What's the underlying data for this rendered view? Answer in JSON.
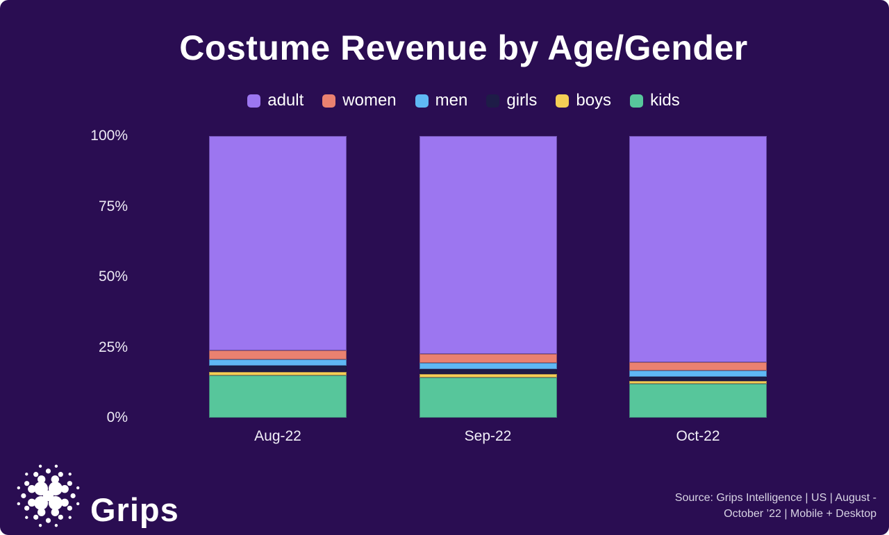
{
  "chart": {
    "title": "Costume Revenue by Age/Gender"
  },
  "chart_data": {
    "type": "bar",
    "stacked": true,
    "unit": "%",
    "title": "Costume Revenue by Age/Gender",
    "categories": [
      "Aug-22",
      "Sep-22",
      "Oct-22"
    ],
    "series": [
      {
        "name": "adult",
        "color": "#9C76F0",
        "values": [
          76.1,
          77.3,
          80.4
        ]
      },
      {
        "name": "women",
        "color": "#EA8170",
        "values": [
          3.3,
          3.3,
          2.9
        ]
      },
      {
        "name": "men",
        "color": "#5FB8F4",
        "values": [
          2.2,
          2.2,
          2.2
        ]
      },
      {
        "name": "girls",
        "color": "#1E1C47",
        "values": [
          2.1,
          1.7,
          1.5
        ]
      },
      {
        "name": "boys",
        "color": "#F4CF55",
        "values": [
          1.4,
          1.2,
          1.0
        ]
      },
      {
        "name": "kids",
        "color": "#57C69B",
        "values": [
          14.9,
          14.3,
          12.0
        ]
      }
    ],
    "y_ticks": [
      "100%",
      "75%",
      "50%",
      "25%",
      "0%"
    ],
    "ylim": [
      0,
      100
    ],
    "legend_position": "top",
    "grid": false,
    "xlabel": "",
    "ylabel": ""
  },
  "footer": {
    "brand": "Grips",
    "source_line1": "Source: Grips Intelligence | US | August -",
    "source_line2": "October ’22 | Mobile + Desktop"
  },
  "colors": {
    "background": "#2A0D52",
    "title_text": "#FFFFFF",
    "axis_text": "#EDEAF5",
    "source_text": "#D8D4E4"
  }
}
